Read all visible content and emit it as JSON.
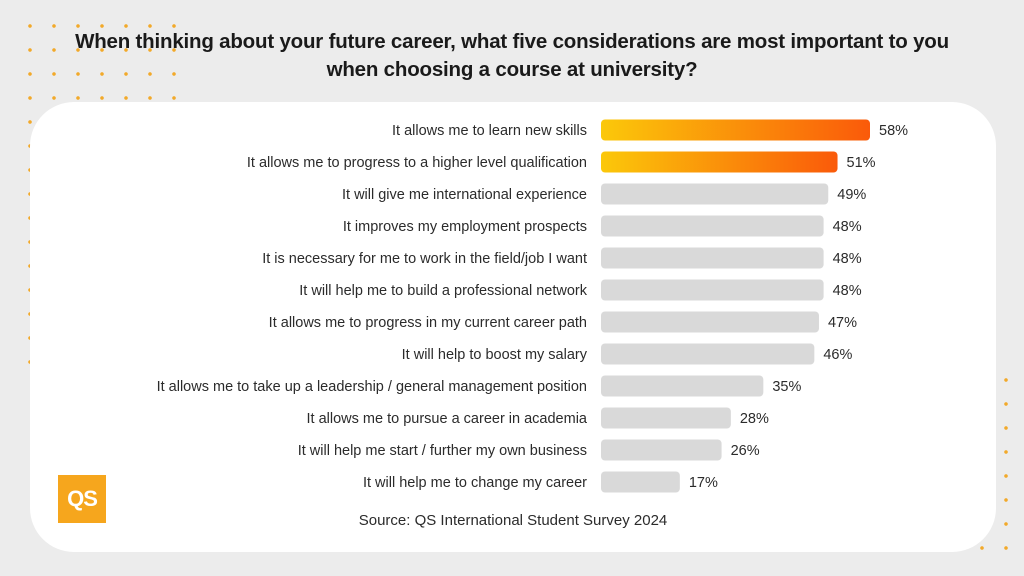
{
  "title": "When thinking about your future career, what five considerations are most important to you when choosing a course at university?",
  "source": "Source: QS International Student Survey 2024",
  "logo_text": "QS",
  "colors": {
    "highlight_start": "#fbc80a",
    "highlight_end": "#fa5a0a",
    "bar_default": "#d9d9d9",
    "dots": "#f2a92a",
    "logo": "#f6a61d"
  },
  "chart_data": {
    "type": "bar",
    "orientation": "horizontal",
    "categories": [
      "It allows me to learn new skills",
      "It allows me to progress to a higher level qualification",
      "It will give me international experience",
      "It improves my employment prospects",
      "It is necessary for me to work in the field/job I want",
      "It will help me to build a professional network",
      "It allows me to progress in my current career path",
      "It will help to boost my salary",
      "It allows me to take up a leadership / general management position",
      "It allows me to pursue a career in academia",
      "It will help me start / further my own business",
      "It will help me to change my career"
    ],
    "values": [
      58,
      51,
      49,
      48,
      48,
      48,
      47,
      46,
      35,
      28,
      26,
      17
    ],
    "value_labels": [
      "58%",
      "51%",
      "49%",
      "48%",
      "48%",
      "48%",
      "47%",
      "46%",
      "35%",
      "28%",
      "26%",
      "17%"
    ],
    "highlighted": [
      true,
      true,
      false,
      false,
      false,
      false,
      false,
      false,
      false,
      false,
      false,
      false
    ],
    "xlim": [
      0,
      58
    ],
    "grid": false,
    "legend": "none"
  }
}
